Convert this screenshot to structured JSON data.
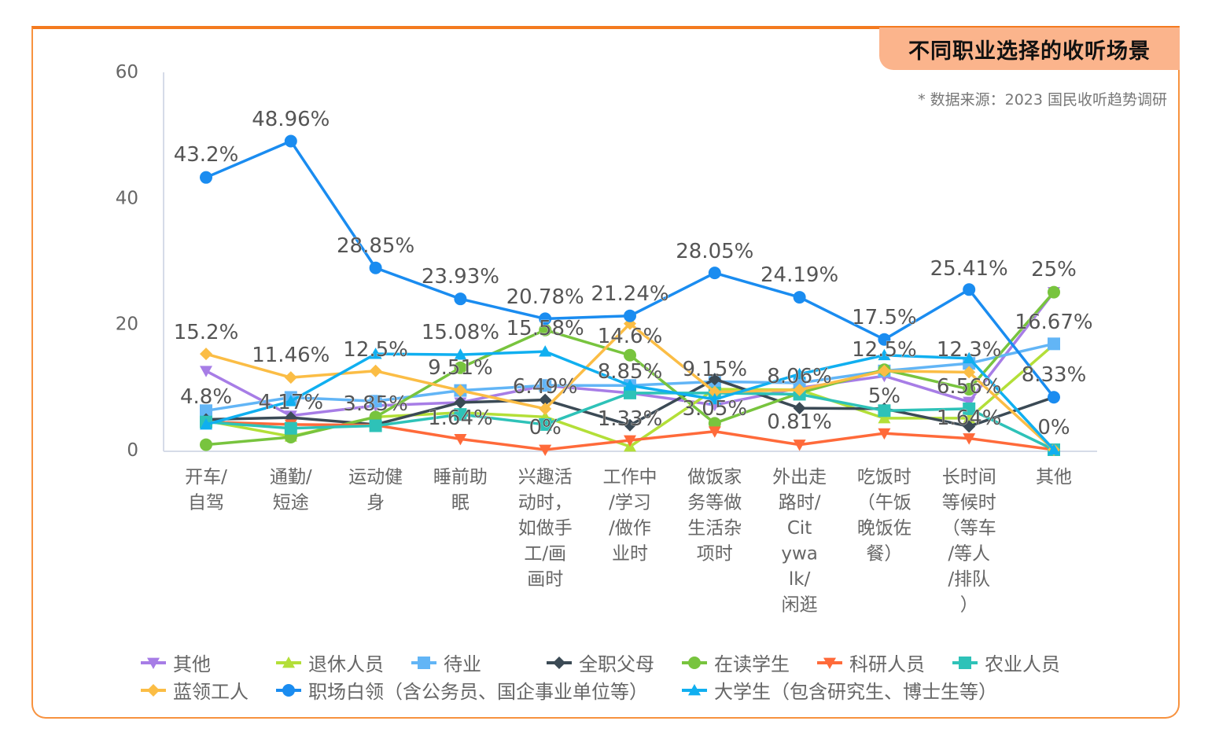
{
  "header": {
    "title": "不同职业选择的收听场景",
    "source": "* 数据来源：2023 国民收听趋势调研"
  },
  "chart_data": {
    "type": "line",
    "title": "不同职业选择的收听场景",
    "ylim": [
      0,
      60
    ],
    "yticks": [
      "0",
      "20",
      "40",
      "60"
    ],
    "grid": false,
    "legend_position": "bottom",
    "categories": [
      [
        "开车/",
        "自驾"
      ],
      [
        "通勤/",
        "短途"
      ],
      [
        "运动健",
        "身"
      ],
      [
        "睡前助",
        "眠"
      ],
      [
        "兴趣活",
        "动时，",
        "如做手",
        "工/画",
        "画时"
      ],
      [
        "工作中",
        "/学习",
        "/做作",
        "业时"
      ],
      [
        "做饭家",
        "务等做",
        "生活杂",
        "项时"
      ],
      [
        "外出走",
        "路时/",
        "Cit",
        "ywa",
        "lk/",
        "闲逛"
      ],
      [
        "吃饭时",
        "（午饭",
        "晚饭佐",
        "餐）"
      ],
      [
        "长时间",
        "等候时",
        "（等车",
        "/等人",
        "/排队",
        "）"
      ],
      [
        "其他"
      ]
    ],
    "series": [
      {
        "name": "其他",
        "color": "#a77de6",
        "marker": "triangle-down",
        "values": [
          12.5,
          5.4,
          7.0,
          7.5,
          10.2,
          9.0,
          7.1,
          9.8,
          11.7,
          7.6,
          25
        ]
      },
      {
        "name": "退休人员",
        "color": "#b3df38",
        "marker": "triangle",
        "values": [
          4.6,
          2.1,
          5.2,
          5.9,
          5.2,
          0.5,
          9.6,
          9.5,
          5.0,
          5.0,
          16.67
        ]
      },
      {
        "name": "待业",
        "color": "#62b5f6",
        "marker": "square",
        "values": [
          6.2,
          8.3,
          7.7,
          9.4,
          10.2,
          10.2,
          10.8,
          10.6,
          12.5,
          13.7,
          16.8
        ]
      },
      {
        "name": "全职父母",
        "color": "#3b4a55",
        "marker": "diamond",
        "values": [
          4.8,
          5.1,
          4.0,
          7.5,
          7.9,
          3.9,
          11.2,
          6.6,
          6.5,
          3.7,
          8.33
        ]
      },
      {
        "name": "在读学生",
        "color": "#78c43e",
        "marker": "circle",
        "values": [
          0.8,
          2.0,
          5.2,
          13.0,
          19.0,
          15.0,
          4.2,
          9.0,
          12.7,
          9.6,
          25
        ]
      },
      {
        "name": "科研人员",
        "color": "#ff6a3a",
        "marker": "triangle-down",
        "values": [
          4.4,
          4.0,
          3.9,
          1.7,
          0,
          1.5,
          2.9,
          0.8,
          2.6,
          1.8,
          0
        ]
      },
      {
        "name": "农业人员",
        "color": "#2ec2b8",
        "marker": "square",
        "values": [
          4.4,
          3.4,
          3.8,
          5.6,
          4.0,
          9.0,
          9.0,
          8.8,
          6.2,
          6.5,
          0
        ]
      },
      {
        "name": "蓝领工人",
        "color": "#fbbd45",
        "marker": "diamond",
        "values": [
          15.2,
          11.46,
          12.5,
          9.4,
          6.49,
          20.0,
          9.15,
          9.5,
          12.5,
          12.3,
          0
        ]
      },
      {
        "name": "职场白领（含公务员、国企事业单位等）",
        "color": "#1a8cf0",
        "marker": "circle",
        "values": [
          43.2,
          48.96,
          28.85,
          23.93,
          20.78,
          21.24,
          28.05,
          24.19,
          17.5,
          25.41,
          8.33
        ]
      },
      {
        "name": "大学生（包含研究生、博士生等）",
        "color": "#10aff0",
        "marker": "triangle",
        "values": [
          4.0,
          7.7,
          15.2,
          15.08,
          15.58,
          10.2,
          8.0,
          12.0,
          15.0,
          14.5,
          0
        ]
      }
    ],
    "data_labels": [
      [
        "43.2%",
        "15.2%",
        "4.8%"
      ],
      [
        "48.96%",
        "11.46%",
        "4.17%"
      ],
      [
        "28.85%",
        "12.5%",
        "3.85%"
      ],
      [
        "23.93%",
        "15.08%",
        "9.51%",
        "1.64%"
      ],
      [
        "20.78%",
        "15.58%",
        "6.49%",
        "0%"
      ],
      [
        "21.24%",
        "14.6%",
        "8.85%",
        "1.33%"
      ],
      [
        "28.05%",
        "9.15%",
        "3.05%"
      ],
      [
        "24.19%",
        "8.06%",
        "0.81%"
      ],
      [
        "17.5%",
        "12.5%",
        "5%"
      ],
      [
        "25.41%",
        "12.3%",
        "6.56%",
        "1.64%"
      ],
      [
        "25%",
        "16.67%",
        "8.33%",
        "0%"
      ]
    ]
  }
}
